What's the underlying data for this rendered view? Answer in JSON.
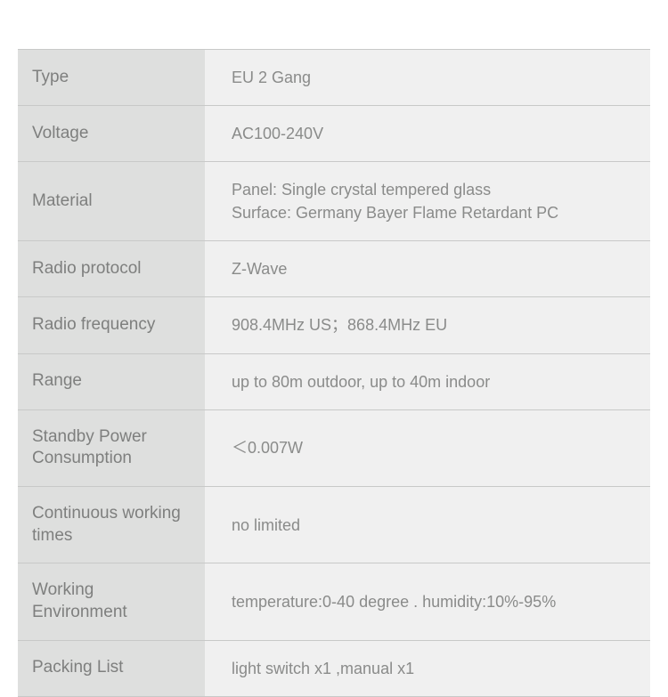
{
  "spec_table": {
    "type": "table",
    "label_column_width": 210,
    "colors": {
      "label_bg": "#dedfde",
      "value_bg": "#f0f0f0",
      "label_text": "#7e7f7e",
      "value_text": "#8a8b8a",
      "border": "#c8c9c8",
      "page_bg": "#ffffff"
    },
    "fonts": {
      "label_fontsize": 19,
      "label_fontweight": 500,
      "value_fontsize": 18,
      "value_fontweight": 400
    },
    "rows": [
      {
        "label": "Type",
        "value": "EU 2 Gang"
      },
      {
        "label": "Voltage",
        "value": "AC100-240V"
      },
      {
        "label": "Material",
        "value": "Panel: Single crystal tempered glass\nSurface: Germany Bayer Flame Retardant PC"
      },
      {
        "label": "Radio protocol",
        "value": "Z-Wave"
      },
      {
        "label": "Radio frequency",
        "value": "908.4MHz US；868.4MHz EU"
      },
      {
        "label": "Range",
        "value": "up to 80m outdoor, up to 40m indoor"
      },
      {
        "label": "Standby Power Consumption",
        "value": "＜0.007W"
      },
      {
        "label": "Continuous working times",
        "value": "no limited"
      },
      {
        "label": "Working Environment",
        "value": "temperature:0-40 degree . humidity:10%-95%"
      },
      {
        "label": "Packing List",
        "value": "light switch x1 ,manual x1"
      }
    ]
  }
}
